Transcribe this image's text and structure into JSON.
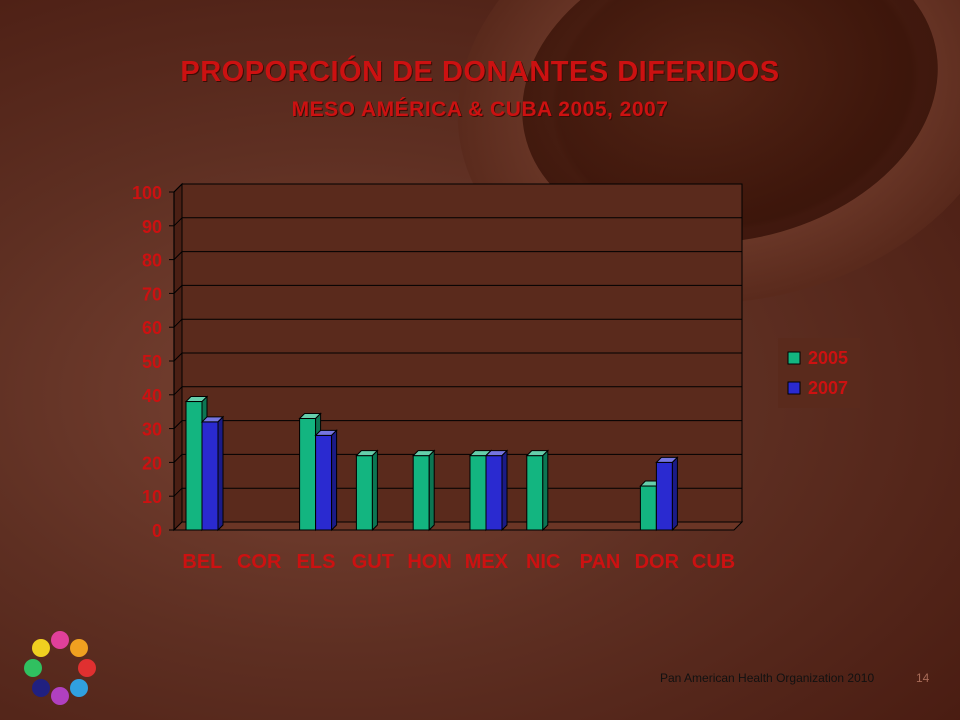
{
  "slide": {
    "title": "PROPORCIÓN DE DONANTES DIFERIDOS",
    "subtitle": "MESO AMÉRICA & CUBA 2005, 2007",
    "footer": "Pan American Health Organization 2010",
    "page_number": "14"
  },
  "colors": {
    "title": "#cc1111",
    "series_2005": "#13b580",
    "series_2007": "#2a2ad0",
    "plot_background": "#5a2a1c"
  },
  "chart_data": {
    "type": "bar",
    "title": "PROPORCIÓN DE DONANTES DIFERIDOS",
    "subtitle": "MESO AMÉRICA & CUBA 2005, 2007",
    "categories": [
      "BEL",
      "COR",
      "ELS",
      "GUT",
      "HON",
      "MEX",
      "NIC",
      "PAN",
      "DOR",
      "CUB"
    ],
    "series": [
      {
        "name": "2005",
        "values": [
          38,
          null,
          33,
          22,
          22,
          22,
          22,
          null,
          13,
          null
        ]
      },
      {
        "name": "2007",
        "values": [
          32,
          null,
          28,
          null,
          null,
          22,
          null,
          null,
          20,
          null
        ]
      }
    ],
    "yticks": [
      0,
      10,
      20,
      30,
      40,
      50,
      60,
      70,
      80,
      90,
      100
    ],
    "ylim": [
      0,
      100
    ],
    "grid": true,
    "legend": "right",
    "style": "3d-bar"
  }
}
